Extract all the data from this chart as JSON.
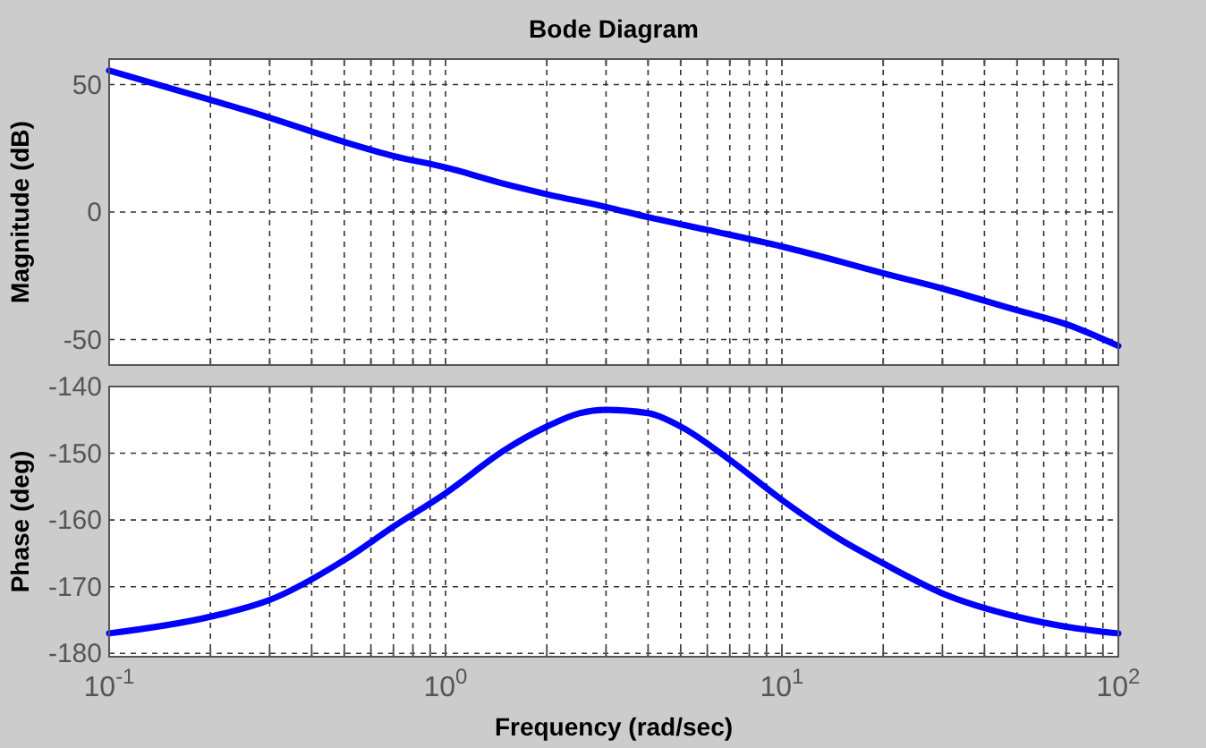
{
  "chart_data": [
    {
      "type": "line",
      "title": "Bode Diagram",
      "ylabel": "Magnitude (dB)",
      "log": "x",
      "grid": true,
      "tick_labels": "y",
      "marker": "none",
      "line_style": "solid",
      "x": [
        0.1,
        0.2,
        0.3,
        0.5,
        0.7,
        1,
        1.5,
        2,
        3,
        4,
        6,
        10,
        15,
        20,
        30,
        50,
        70,
        100
      ],
      "series": [
        {
          "color": "#0000ff",
          "values": [
            55.5,
            44,
            37,
            27.5,
            22,
            17.5,
            11,
            7,
            2,
            -2,
            -7,
            -13.5,
            -19.5,
            -24,
            -30,
            -38.5,
            -44,
            -52.5
          ]
        }
      ],
      "xlim": [
        0.1,
        100
      ],
      "xticks": [
        {
          "value": 0.1,
          "label": null
        },
        {
          "value": 0.2,
          "label": null
        },
        {
          "value": 0.3,
          "label": null
        },
        {
          "value": 0.4,
          "label": null
        },
        {
          "value": 0.5,
          "label": null
        },
        {
          "value": 0.6,
          "label": null
        },
        {
          "value": 0.7,
          "label": null
        },
        {
          "value": 0.8,
          "label": null
        },
        {
          "value": 0.9,
          "label": null
        },
        {
          "value": 1,
          "label": null
        },
        {
          "value": 2,
          "label": null
        },
        {
          "value": 3,
          "label": null
        },
        {
          "value": 4,
          "label": null
        },
        {
          "value": 5,
          "label": null
        },
        {
          "value": 6,
          "label": null
        },
        {
          "value": 7,
          "label": null
        },
        {
          "value": 8,
          "label": null
        },
        {
          "value": 9,
          "label": null
        },
        {
          "value": 10,
          "label": null
        },
        {
          "value": 20,
          "label": null
        },
        {
          "value": 30,
          "label": null
        },
        {
          "value": 40,
          "label": null
        },
        {
          "value": 50,
          "label": null
        },
        {
          "value": 60,
          "label": null
        },
        {
          "value": 70,
          "label": null
        },
        {
          "value": 80,
          "label": null
        },
        {
          "value": 90,
          "label": null
        },
        {
          "value": 100,
          "label": null
        }
      ],
      "ylim": [
        -60,
        60
      ],
      "yticks": [
        -50,
        0,
        50
      ]
    },
    {
      "type": "line",
      "xlabel": "Frequency  (rad/sec)",
      "ylabel": "Phase (deg)",
      "log": "x",
      "grid": true,
      "marker": "none",
      "line_style": "solid",
      "x": [
        0.1,
        0.2,
        0.3,
        0.5,
        0.7,
        1,
        1.5,
        2,
        2.5,
        3,
        4,
        5,
        7,
        10,
        15,
        20,
        30,
        50,
        70,
        100
      ],
      "series": [
        {
          "color": "#0000ff",
          "values": [
            -177,
            -174.5,
            -172,
            -166,
            -161,
            -156,
            -149.5,
            -146,
            -144,
            -143.5,
            -144,
            -146,
            -151,
            -157,
            -163,
            -166.5,
            -171,
            -174.5,
            -176,
            -177
          ]
        }
      ],
      "xlim": [
        0.1,
        100
      ],
      "xticks": [
        {
          "value": 0.1,
          "label": "10$^{-1}$"
        },
        {
          "value": 0.2,
          "label": null
        },
        {
          "value": 0.3,
          "label": null
        },
        {
          "value": 0.4,
          "label": null
        },
        {
          "value": 0.5,
          "label": null
        },
        {
          "value": 0.6,
          "label": null
        },
        {
          "value": 0.7,
          "label": null
        },
        {
          "value": 0.8,
          "label": null
        },
        {
          "value": 0.9,
          "label": null
        },
        {
          "value": 1,
          "label": "10$^{0}$"
        },
        {
          "value": 2,
          "label": null
        },
        {
          "value": 3,
          "label": null
        },
        {
          "value": 4,
          "label": null
        },
        {
          "value": 5,
          "label": null
        },
        {
          "value": 6,
          "label": null
        },
        {
          "value": 7,
          "label": null
        },
        {
          "value": 8,
          "label": null
        },
        {
          "value": 9,
          "label": null
        },
        {
          "value": 10,
          "label": "10$^{1}$"
        },
        {
          "value": 20,
          "label": null
        },
        {
          "value": 30,
          "label": null
        },
        {
          "value": 40,
          "label": null
        },
        {
          "value": 50,
          "label": null
        },
        {
          "value": 60,
          "label": null
        },
        {
          "value": 70,
          "label": null
        },
        {
          "value": 80,
          "label": null
        },
        {
          "value": 90,
          "label": null
        },
        {
          "value": 100,
          "label": "10$^{2}$"
        }
      ],
      "ylim": [
        -180.5,
        -140
      ],
      "yticks": [
        -180,
        -170,
        -160,
        -150,
        -140
      ]
    }
  ]
}
